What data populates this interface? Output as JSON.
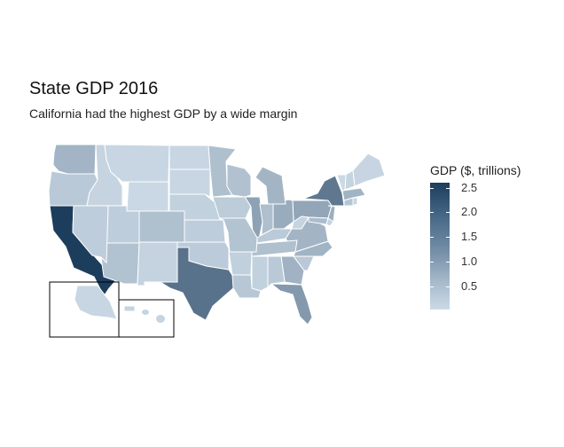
{
  "chart_data": {
    "type": "choropleth",
    "title": "State GDP 2016",
    "subtitle": "California had the highest GDP by a wide margin",
    "legend": {
      "title": "GDP ($, trillions)",
      "position": "right",
      "ticks": [
        "2.5",
        "2.0",
        "1.5",
        "1.0",
        "0.5"
      ],
      "tick_values": [
        2.5,
        2.0,
        1.5,
        1.0,
        0.5
      ],
      "range": [
        0.03,
        2.6
      ],
      "low_color": "#cbd9e5",
      "high_color": "#1d3d5c"
    },
    "regions": [
      {
        "state": "California",
        "value": 2.6
      },
      {
        "state": "Texas",
        "value": 1.6
      },
      {
        "state": "New York",
        "value": 1.5
      },
      {
        "state": "Florida",
        "value": 0.93
      },
      {
        "state": "Illinois",
        "value": 0.79
      },
      {
        "state": "Pennsylvania",
        "value": 0.72
      },
      {
        "state": "Ohio",
        "value": 0.62
      },
      {
        "state": "New Jersey",
        "value": 0.58
      },
      {
        "state": "Georgia",
        "value": 0.53
      },
      {
        "state": "Washington",
        "value": 0.5
      },
      {
        "state": "Massachusetts",
        "value": 0.51
      },
      {
        "state": "North Carolina",
        "value": 0.51
      },
      {
        "state": "Virginia",
        "value": 0.49
      },
      {
        "state": "Michigan",
        "value": 0.49
      },
      {
        "state": "Maryland",
        "value": 0.38
      },
      {
        "state": "Colorado",
        "value": 0.33
      },
      {
        "state": "Minnesota",
        "value": 0.34
      },
      {
        "state": "Indiana",
        "value": 0.34
      },
      {
        "state": "Tennessee",
        "value": 0.33
      },
      {
        "state": "Arizona",
        "value": 0.3
      },
      {
        "state": "Wisconsin",
        "value": 0.31
      },
      {
        "state": "Missouri",
        "value": 0.29
      },
      {
        "state": "Connecticut",
        "value": 0.26
      },
      {
        "state": "Louisiana",
        "value": 0.23
      },
      {
        "state": "Oregon",
        "value": 0.21
      },
      {
        "state": "South Carolina",
        "value": 0.2
      },
      {
        "state": "Alabama",
        "value": 0.2
      },
      {
        "state": "Kentucky",
        "value": 0.19
      },
      {
        "state": "Oklahoma",
        "value": 0.18
      },
      {
        "state": "Utah",
        "value": 0.15
      },
      {
        "state": "Iowa",
        "value": 0.17
      },
      {
        "state": "Kansas",
        "value": 0.15
      },
      {
        "state": "Nevada",
        "value": 0.15
      },
      {
        "state": "Arkansas",
        "value": 0.12
      },
      {
        "state": "Nebraska",
        "value": 0.11
      },
      {
        "state": "Mississippi",
        "value": 0.11
      },
      {
        "state": "New Mexico",
        "value": 0.09
      },
      {
        "state": "Hawaii",
        "value": 0.08
      },
      {
        "state": "New Hampshire",
        "value": 0.08
      },
      {
        "state": "West Virginia",
        "value": 0.07
      },
      {
        "state": "Idaho",
        "value": 0.07
      },
      {
        "state": "Delaware",
        "value": 0.07
      },
      {
        "state": "Maine",
        "value": 0.06
      },
      {
        "state": "Rhode Island",
        "value": 0.06
      },
      {
        "state": "North Dakota",
        "value": 0.05
      },
      {
        "state": "Alaska",
        "value": 0.05
      },
      {
        "state": "South Dakota",
        "value": 0.05
      },
      {
        "state": "Montana",
        "value": 0.05
      },
      {
        "state": "Wyoming",
        "value": 0.04
      },
      {
        "state": "Vermont",
        "value": 0.03
      }
    ]
  }
}
